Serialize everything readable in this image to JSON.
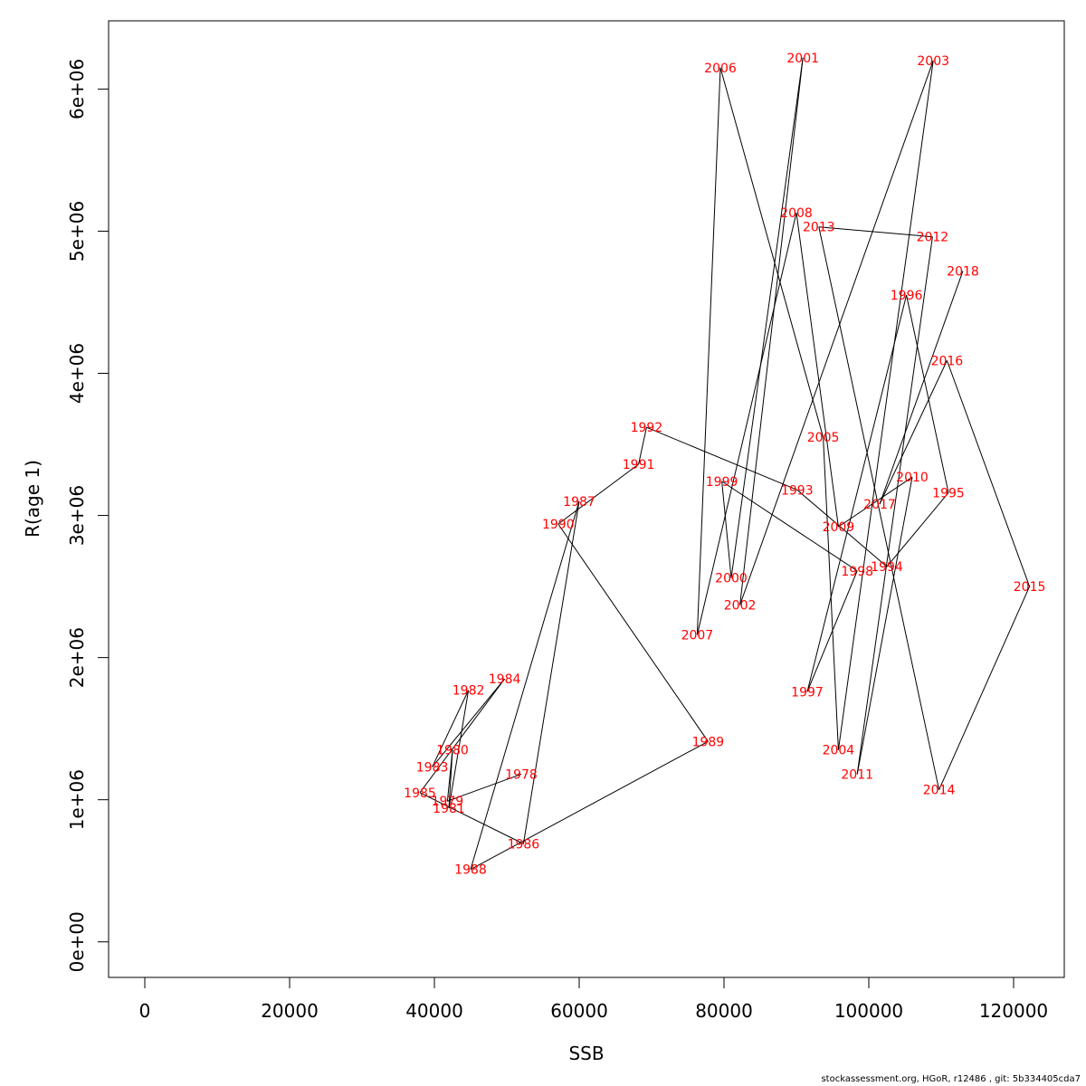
{
  "chart_data": {
    "type": "line",
    "xlabel": "SSB",
    "ylabel": "R(age 1)",
    "xlim": [
      -5000,
      127000
    ],
    "ylim": [
      -250000,
      6480000
    ],
    "xticks": [
      0,
      20000,
      40000,
      60000,
      80000,
      100000,
      120000
    ],
    "xtick_labels": [
      "0",
      "20000",
      "40000",
      "60000",
      "80000",
      "100000",
      "120000"
    ],
    "yticks": [
      0,
      1000000,
      2000000,
      3000000,
      4000000,
      5000000,
      6000000
    ],
    "ytick_labels": [
      "0e+00",
      "1e+06",
      "2e+06",
      "3e+06",
      "4e+06",
      "5e+06",
      "6e+06"
    ],
    "grid": false,
    "label_color": "#ff0000",
    "line_color": "#000000",
    "points": [
      {
        "year": "1978",
        "x": 52000,
        "y": 1180000
      },
      {
        "year": "1979",
        "x": 41800,
        "y": 990000
      },
      {
        "year": "1980",
        "x": 42500,
        "y": 1350000
      },
      {
        "year": "1981",
        "x": 42000,
        "y": 940000
      },
      {
        "year": "1982",
        "x": 44700,
        "y": 1770000
      },
      {
        "year": "1983",
        "x": 39700,
        "y": 1230000
      },
      {
        "year": "1984",
        "x": 49700,
        "y": 1850000
      },
      {
        "year": "1985",
        "x": 38000,
        "y": 1050000
      },
      {
        "year": "1986",
        "x": 52300,
        "y": 690000
      },
      {
        "year": "1987",
        "x": 60000,
        "y": 3100000
      },
      {
        "year": "1988",
        "x": 45000,
        "y": 510000
      },
      {
        "year": "1989",
        "x": 77800,
        "y": 1410000
      },
      {
        "year": "1990",
        "x": 57100,
        "y": 2940000
      },
      {
        "year": "1991",
        "x": 68200,
        "y": 3360000
      },
      {
        "year": "1992",
        "x": 69300,
        "y": 3620000
      },
      {
        "year": "1993",
        "x": 90100,
        "y": 3180000
      },
      {
        "year": "1994",
        "x": 102500,
        "y": 2640000
      },
      {
        "year": "1995",
        "x": 111000,
        "y": 3160000
      },
      {
        "year": "1996",
        "x": 105200,
        "y": 4550000
      },
      {
        "year": "1997",
        "x": 91500,
        "y": 1760000
      },
      {
        "year": "1998",
        "x": 98400,
        "y": 2610000
      },
      {
        "year": "1999",
        "x": 79700,
        "y": 3240000
      },
      {
        "year": "2000",
        "x": 81000,
        "y": 2560000
      },
      {
        "year": "2001",
        "x": 90900,
        "y": 6220000
      },
      {
        "year": "2002",
        "x": 82200,
        "y": 2370000
      },
      {
        "year": "2003",
        "x": 108900,
        "y": 6200000
      },
      {
        "year": "2004",
        "x": 95800,
        "y": 1350000
      },
      {
        "year": "2005",
        "x": 93700,
        "y": 3550000
      },
      {
        "year": "2006",
        "x": 79500,
        "y": 6150000
      },
      {
        "year": "2007",
        "x": 76300,
        "y": 2160000
      },
      {
        "year": "2008",
        "x": 90000,
        "y": 5130000
      },
      {
        "year": "2009",
        "x": 95800,
        "y": 2920000
      },
      {
        "year": "2010",
        "x": 106000,
        "y": 3270000
      },
      {
        "year": "2011",
        "x": 98400,
        "y": 1180000
      },
      {
        "year": "2012",
        "x": 108800,
        "y": 4960000
      },
      {
        "year": "2013",
        "x": 93100,
        "y": 5030000
      },
      {
        "year": "2014",
        "x": 109700,
        "y": 1070000
      },
      {
        "year": "2015",
        "x": 122200,
        "y": 2500000
      },
      {
        "year": "2016",
        "x": 110800,
        "y": 4090000
      },
      {
        "year": "2017",
        "x": 101500,
        "y": 3080000
      },
      {
        "year": "2018",
        "x": 113000,
        "y": 4720000
      }
    ]
  },
  "footer": {
    "text": "stockassessment.org, HGoR, r12486 , git: 5b334405cda7"
  }
}
